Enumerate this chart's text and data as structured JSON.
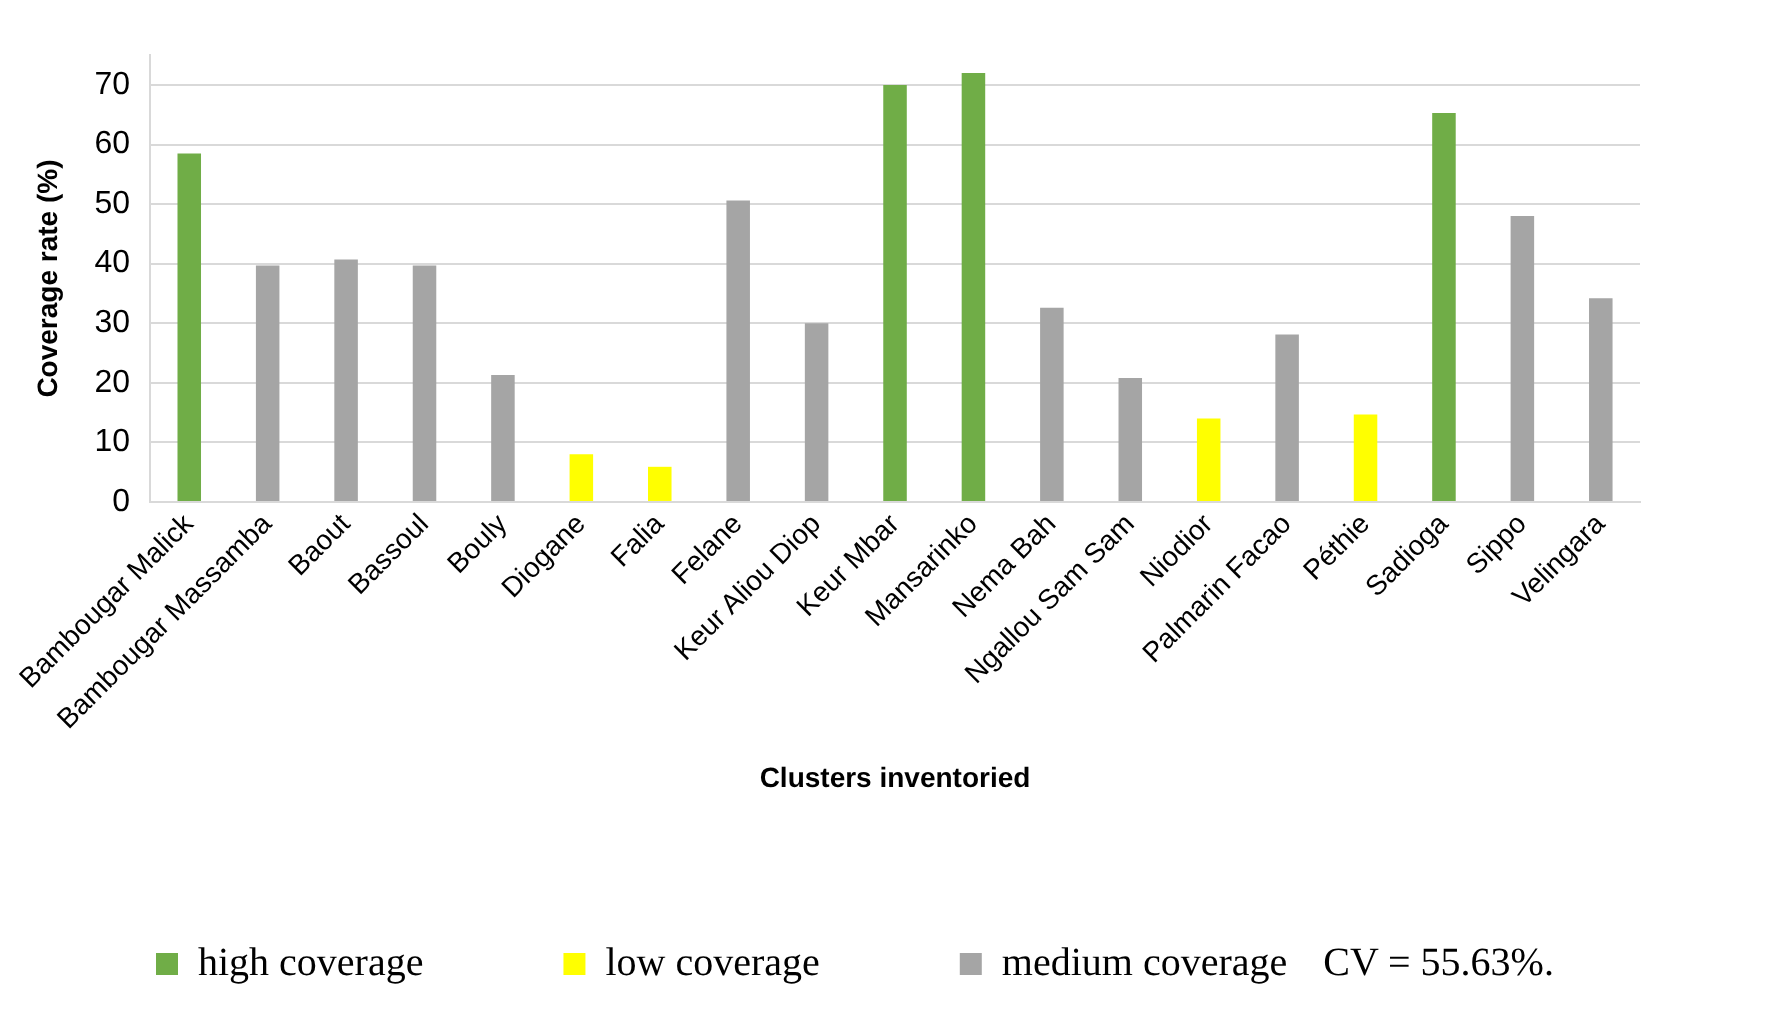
{
  "chart_data": {
    "type": "bar",
    "xlabel": "Clusters inventoried",
    "ylabel": "Coverage rate (%)",
    "categories": [
      "Bambougar Malick",
      "Bambougar Massamba",
      "Baout",
      "Bassoul",
      "Bouly",
      "Diogane",
      "Falia",
      "Felane",
      "Keur Aliou Diop",
      "Keur Mbar",
      "Mansarinko",
      "Nema Bah",
      "Ngallou Sam Sam",
      "Niodior",
      "Palmarin Facao",
      "Péthie",
      "Sadioga",
      "Sippo",
      "Velingara"
    ],
    "series": [
      {
        "name": "high coverage",
        "color": "#70ad47",
        "values": [
          58.5,
          null,
          null,
          null,
          null,
          null,
          null,
          null,
          null,
          70,
          72,
          null,
          null,
          null,
          null,
          null,
          65.3,
          null,
          null
        ]
      },
      {
        "name": "low coverage",
        "color": "#ffff00",
        "values": [
          null,
          null,
          null,
          null,
          null,
          8,
          5.9,
          null,
          null,
          null,
          null,
          null,
          null,
          14,
          null,
          14.7,
          null,
          null,
          null
        ]
      },
      {
        "name": "medium coverage",
        "color": "#a5a5a5",
        "values": [
          null,
          39.7,
          40.7,
          39.7,
          21.3,
          null,
          null,
          50.6,
          30,
          null,
          null,
          32.6,
          20.8,
          null,
          28.1,
          null,
          null,
          48,
          34.2
        ]
      }
    ],
    "ylim": [
      0,
      75
    ],
    "yticks": [
      0,
      10,
      20,
      30,
      40,
      50,
      60,
      70
    ],
    "grid": "y",
    "legend": "bottom",
    "annotations": [
      "CV = 55.63%."
    ]
  }
}
